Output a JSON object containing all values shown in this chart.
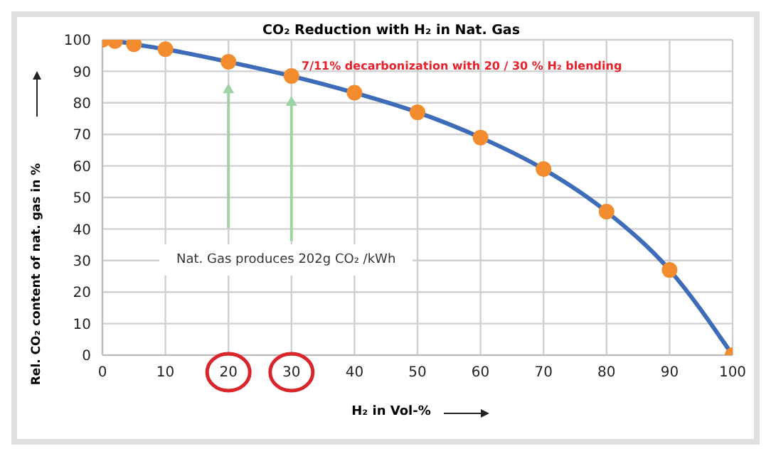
{
  "chart_data": {
    "type": "line",
    "title": "CO₂ Reduction with H₂ in Nat. Gas",
    "xlabel": "H₂ in Vol-%",
    "ylabel": "Rel. CO₂ content of nat. gas in %",
    "x": [
      0,
      2,
      5,
      10,
      20,
      30,
      40,
      50,
      60,
      70,
      80,
      90,
      100
    ],
    "series": [
      {
        "color": "#3e6cb8",
        "colors": [
          "#f28c2e",
          "#f28c2e",
          "#f28c2e",
          "#f28c2e",
          "#f28c2e",
          "#f28c2e",
          "#f28c2e",
          "#f28c2e",
          "#f28c2e",
          "#f28c2e",
          "#f28c2e",
          "#f28c2e",
          "#f28c2e"
        ],
        "values": [
          100,
          99.6,
          98.6,
          97,
          93,
          88.5,
          83.2,
          77,
          69,
          59,
          45.5,
          27,
          0
        ]
      }
    ],
    "xlim": [
      0,
      100
    ],
    "xticks": [
      0,
      10,
      20,
      30,
      40,
      50,
      60,
      70,
      80,
      90,
      100
    ],
    "ylim": [
      0,
      100
    ],
    "yticks": [
      0,
      10,
      20,
      30,
      40,
      50,
      60,
      70,
      80,
      90,
      100
    ],
    "grid": true,
    "marker": "circle",
    "line_style": "solid",
    "annotations": [
      "7/11% decarbonization with 20 / 30 % H₂ blending",
      "Nat. Gas produces 202g CO₂ /kWh"
    ]
  }
}
